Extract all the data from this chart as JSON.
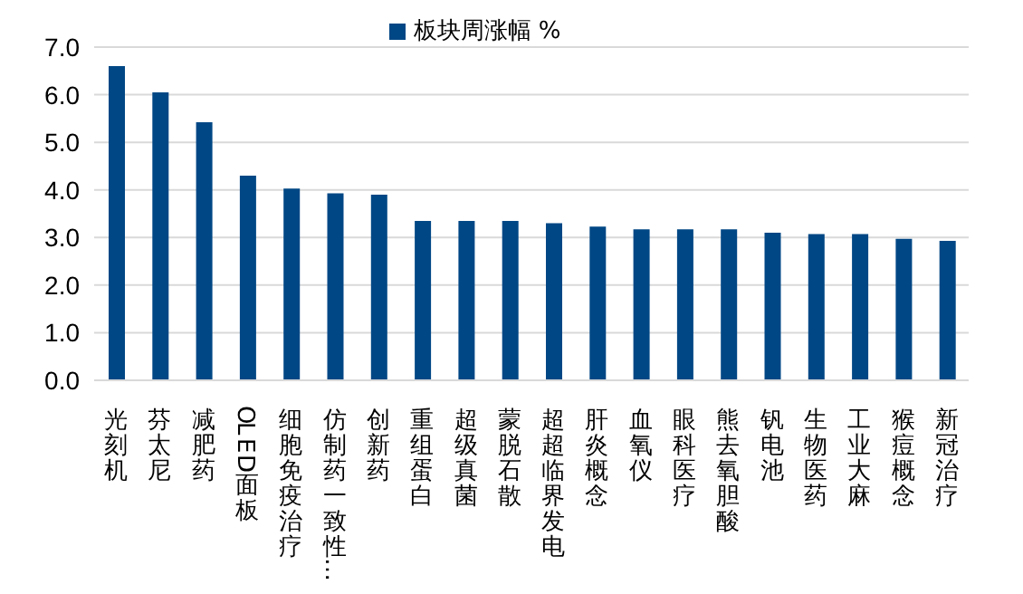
{
  "chart_data": {
    "type": "bar",
    "categories": [
      "光刻机",
      "芬太尼",
      "减肥药",
      "OLED面板",
      "细胞免疫治疗",
      "仿制药一致性…",
      "创新药",
      "重组蛋白",
      "超级真菌",
      "蒙脱石散",
      "超超临界发电",
      "肝炎概念",
      "血氧仪",
      "眼科医疗",
      "熊去氧胆酸",
      "钒电池",
      "生物医药",
      "工业大麻",
      "猴痘概念",
      "新冠治疗"
    ],
    "series": [
      {
        "name": "板块周涨幅 %",
        "color": "#004785",
        "values": [
          6.6,
          6.05,
          5.42,
          4.3,
          4.03,
          3.93,
          3.9,
          3.35,
          3.35,
          3.35,
          3.3,
          3.23,
          3.17,
          3.17,
          3.17,
          3.1,
          3.07,
          3.07,
          2.97,
          2.93
        ]
      }
    ],
    "ylim": [
      0,
      7
    ],
    "yticks": [
      {
        "value": 0,
        "label": "0.0"
      },
      {
        "value": 1,
        "label": "1.0"
      },
      {
        "value": 2,
        "label": "2.0"
      },
      {
        "value": 3,
        "label": "3.0"
      },
      {
        "value": 4,
        "label": "4.0"
      },
      {
        "value": 5,
        "label": "5.0"
      },
      {
        "value": 6,
        "label": "6.0"
      },
      {
        "value": 7,
        "label": "7.0"
      }
    ],
    "grid": "y",
    "legend": "top"
  }
}
